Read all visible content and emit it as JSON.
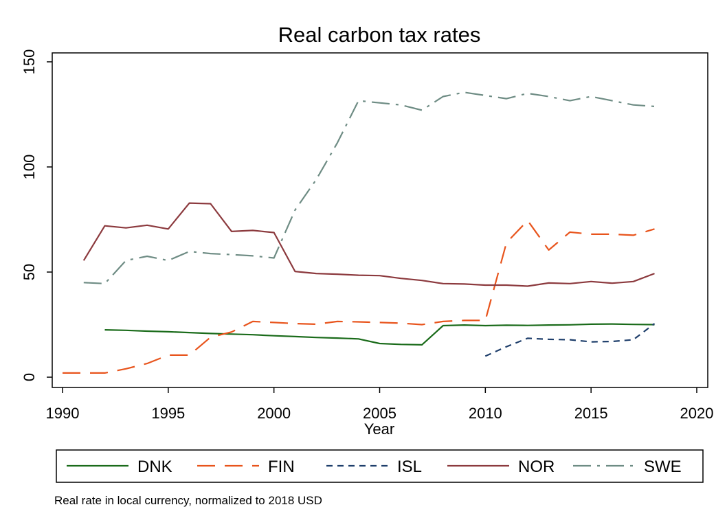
{
  "chart_data": {
    "type": "line",
    "title": "Real carbon tax rates",
    "xlabel": "Year",
    "ylabel": "",
    "xlim": [
      1990,
      2020
    ],
    "ylim": [
      0,
      150
    ],
    "xticks": [
      1990,
      1995,
      2000,
      2005,
      2010,
      2015,
      2020
    ],
    "yticks": [
      0,
      50,
      100,
      150
    ],
    "grid": false,
    "legend_position": "bottom",
    "note": "Real rate in local currency, normalized to 2018 USD",
    "series": [
      {
        "name": "DNK",
        "color": "#1a6b1a",
        "dash": "solid",
        "x": [
          1992,
          1993,
          1994,
          1995,
          1996,
          1997,
          1998,
          1999,
          2000,
          2001,
          2002,
          2003,
          2004,
          2005,
          2006,
          2007,
          2008,
          2009,
          2010,
          2011,
          2012,
          2013,
          2014,
          2015,
          2016,
          2017,
          2018
        ],
        "y": [
          22.5,
          22.3,
          21.9,
          21.6,
          21.2,
          20.8,
          20.5,
          20.2,
          19.7,
          19.3,
          18.9,
          18.6,
          18.2,
          16.0,
          15.6,
          15.4,
          24.5,
          24.8,
          24.5,
          24.7,
          24.6,
          24.8,
          24.9,
          25.2,
          25.3,
          25.1,
          25.0
        ]
      },
      {
        "name": "FIN",
        "color": "#e8541c",
        "dash": "longdash",
        "x": [
          1990,
          1991,
          1992,
          1993,
          1994,
          1995,
          1996,
          1997,
          1998,
          1999,
          2000,
          2001,
          2002,
          2003,
          2004,
          2005,
          2006,
          2007,
          2008,
          2009,
          2010,
          2011,
          2012,
          2013,
          2014,
          2015,
          2016,
          2017,
          2018
        ],
        "y": [
          2.0,
          2.0,
          2.0,
          4.0,
          6.5,
          10.5,
          10.5,
          19.0,
          21.5,
          26.5,
          26.0,
          25.5,
          25.2,
          26.5,
          26.3,
          26.0,
          25.7,
          25.0,
          26.5,
          27.0,
          27.0,
          64.0,
          74.5,
          60.5,
          69.0,
          68.0,
          68.0,
          67.5,
          70.5
        ]
      },
      {
        "name": "ISL",
        "color": "#1e3e6b",
        "dash": "shortdash",
        "x": [
          2010,
          2011,
          2012,
          2013,
          2014,
          2015,
          2016,
          2017,
          2018
        ],
        "y": [
          10.0,
          14.5,
          18.5,
          18.0,
          17.8,
          16.8,
          17.0,
          17.8,
          25.5
        ]
      },
      {
        "name": "NOR",
        "color": "#8c3a3e",
        "dash": "solid",
        "x": [
          1991,
          1992,
          1993,
          1994,
          1995,
          1996,
          1997,
          1998,
          1999,
          2000,
          2001,
          2002,
          2003,
          2004,
          2005,
          2006,
          2007,
          2008,
          2009,
          2010,
          2011,
          2012,
          2013,
          2014,
          2015,
          2016,
          2017,
          2018
        ],
        "y": [
          55.5,
          72.0,
          71.0,
          72.3,
          70.5,
          82.8,
          82.5,
          69.3,
          69.8,
          68.8,
          50.3,
          49.3,
          49.0,
          48.5,
          48.3,
          47.0,
          46.0,
          44.5,
          44.3,
          43.8,
          43.8,
          43.3,
          44.8,
          44.5,
          45.5,
          44.7,
          45.5,
          49.3
        ]
      },
      {
        "name": "SWE",
        "color": "#6e8c84",
        "dash": "dashdot",
        "x": [
          1991,
          1992,
          1993,
          1994,
          1995,
          1996,
          1997,
          1998,
          1999,
          2000,
          2001,
          2002,
          2003,
          2004,
          2005,
          2006,
          2007,
          2008,
          2009,
          2010,
          2011,
          2012,
          2013,
          2014,
          2015,
          2016,
          2017,
          2018
        ],
        "y": [
          45.0,
          44.5,
          55.5,
          57.5,
          55.5,
          59.8,
          58.8,
          58.3,
          57.7,
          56.7,
          79.5,
          94.0,
          111.5,
          131.5,
          130.5,
          129.5,
          127.0,
          133.5,
          135.5,
          134.0,
          132.5,
          135.0,
          133.5,
          131.5,
          133.5,
          131.5,
          129.5,
          128.8
        ]
      }
    ]
  }
}
